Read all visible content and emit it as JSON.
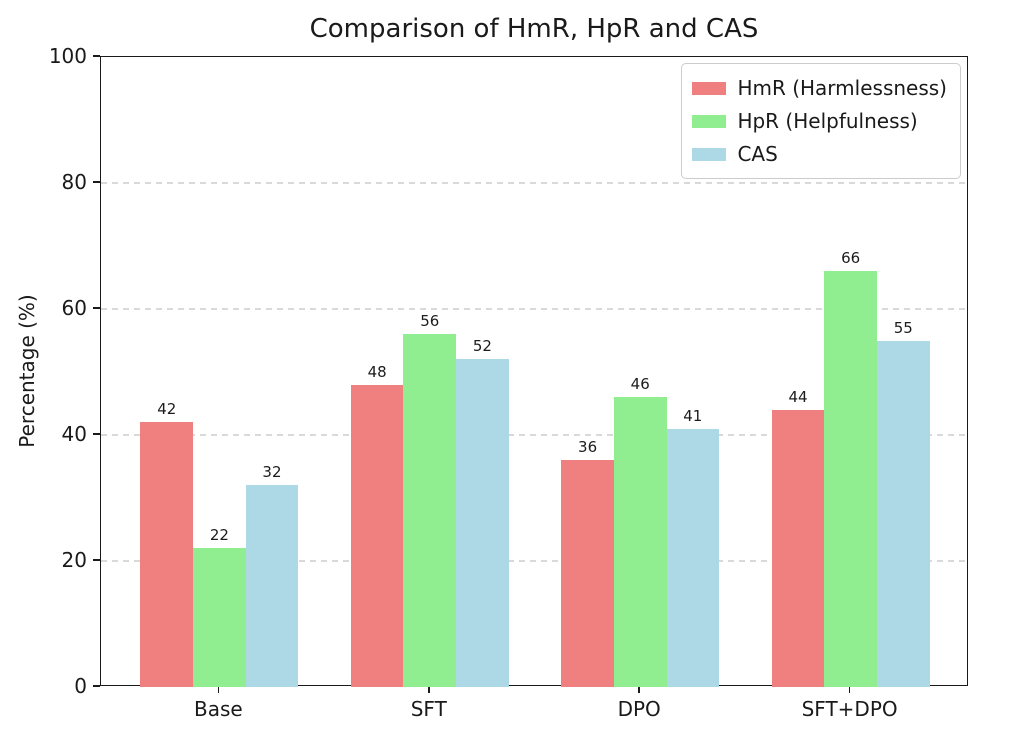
{
  "chart_data": {
    "type": "bar",
    "title": "Comparison of HmR, HpR and CAS",
    "ylabel": "Percentage (%)",
    "xlabel": "",
    "categories": [
      "Base",
      "SFT",
      "DPO",
      "SFT+DPO"
    ],
    "series": [
      {
        "name": "HmR (Harmlessness)",
        "color": "#f08080",
        "values": [
          42,
          48,
          36,
          44
        ]
      },
      {
        "name": "HpR (Helpfulness)",
        "color": "#90ee90",
        "values": [
          22,
          56,
          46,
          66
        ]
      },
      {
        "name": "CAS",
        "color": "#add8e6",
        "values": [
          32,
          52,
          41,
          55
        ]
      }
    ],
    "ylim": [
      0,
      100
    ],
    "yticks": [
      0,
      20,
      40,
      60,
      80,
      100
    ],
    "bar_value_labels_shown": true,
    "grid": {
      "axis": "y",
      "style": "dashed",
      "color": "#d9d9d9",
      "lines_at": [
        20,
        40,
        60,
        80
      ]
    },
    "legend": {
      "position": "upper right"
    }
  }
}
